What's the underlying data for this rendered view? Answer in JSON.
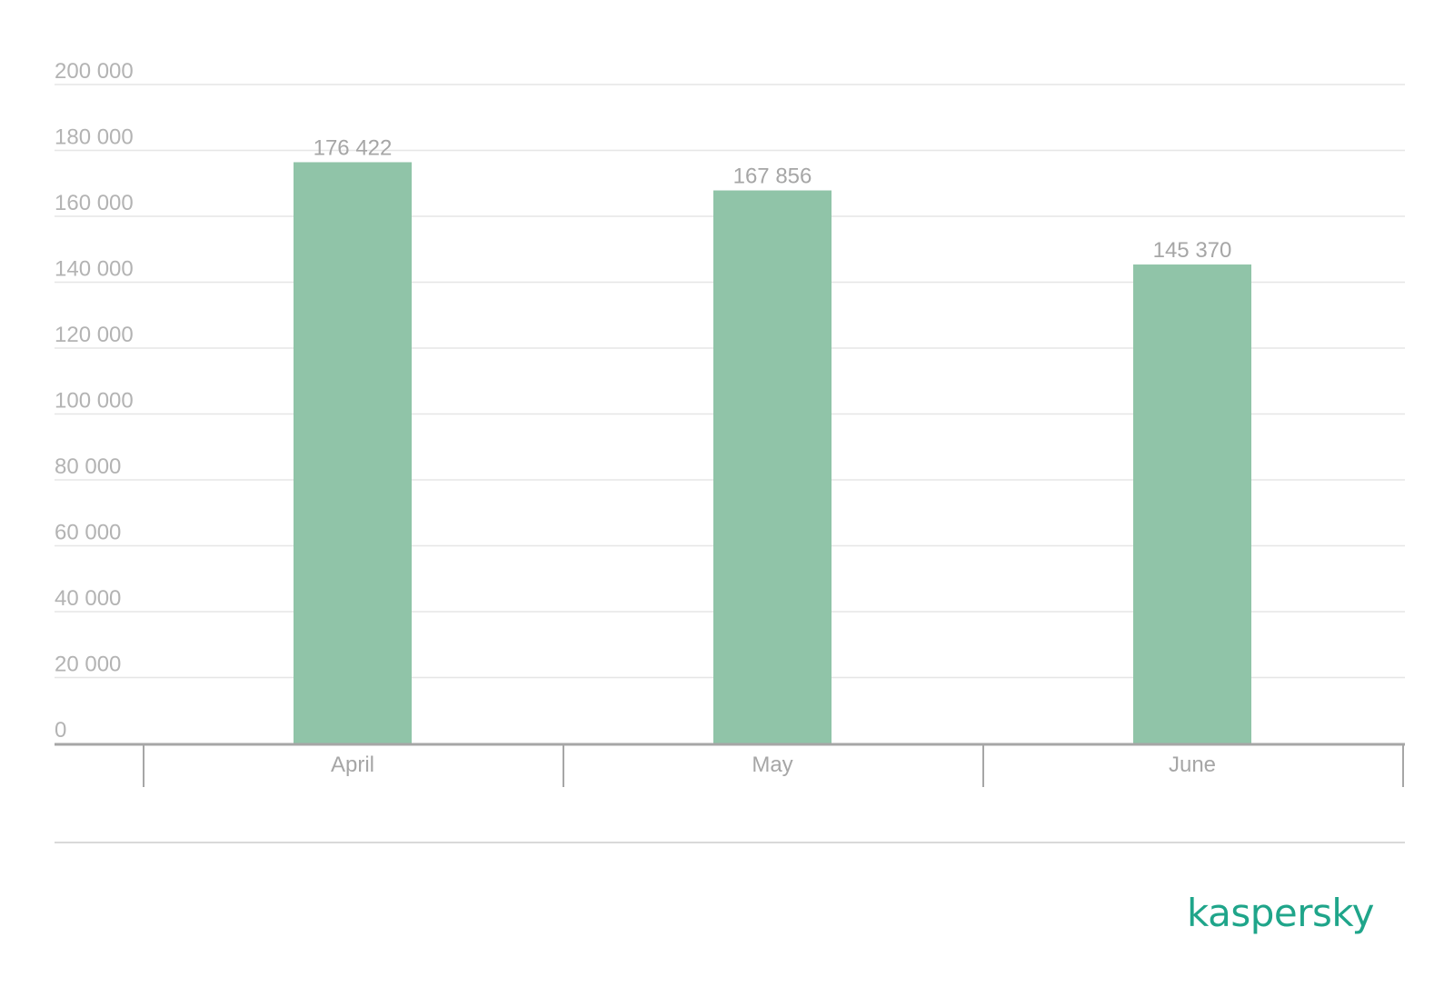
{
  "brand": {
    "logo_text": "kaspersky",
    "color": "#1fa58a"
  },
  "colors": {
    "bar": "#90c4a8",
    "grid": "#e6e6e6",
    "axis": "#a6a6a6",
    "text": "#b3b3b3"
  },
  "chart_data": {
    "type": "bar",
    "categories": [
      "April",
      "May",
      "June"
    ],
    "values": [
      176422,
      167856,
      145370
    ],
    "value_labels": [
      "176 422",
      "167 856",
      "145 370"
    ],
    "ylim": [
      0,
      200000
    ],
    "yticks": [
      0,
      20000,
      40000,
      60000,
      80000,
      100000,
      120000,
      140000,
      160000,
      180000,
      200000
    ],
    "ytick_labels": [
      "0",
      "20 000",
      "40 000",
      "60 000",
      "80 000",
      "100 000",
      "120 000",
      "140 000",
      "160 000",
      "180 000",
      "200 000"
    ],
    "grid": true,
    "legend": "none",
    "title": "",
    "xlabel": "",
    "ylabel": ""
  }
}
